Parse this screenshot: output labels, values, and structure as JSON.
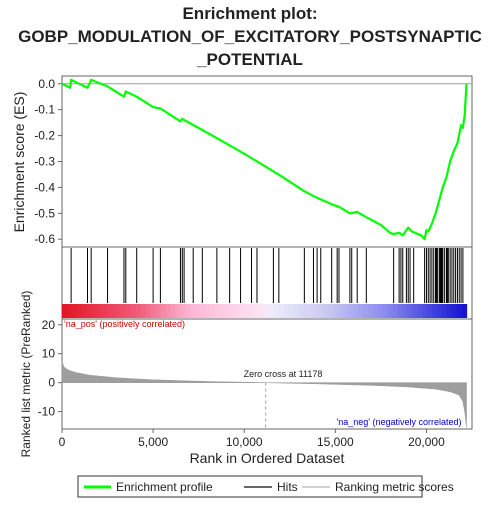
{
  "chart_data": {
    "type": "line",
    "title_lines": [
      "Enrichment plot:",
      "GOBP_MODULATION_OF_EXCITATORY_POSTSYNAPTIC",
      "_POTENTIAL"
    ],
    "xlabel": "Rank in Ordered Dataset",
    "xlim": [
      0,
      22500
    ],
    "x_ticks": [
      0,
      5000,
      10000,
      15000,
      20000
    ],
    "x_tick_labels": [
      "0",
      "5,000",
      "10,000",
      "15,000",
      "20,000"
    ],
    "panels": {
      "es": {
        "ylabel": "Enrichment score (ES)",
        "ylim": [
          -0.63,
          0.03
        ],
        "y_ticks": [
          0.0,
          -0.1,
          -0.2,
          -0.3,
          -0.4,
          -0.5,
          -0.6
        ],
        "y_tick_labels": [
          "0.0",
          "-0.1",
          "-0.2",
          "-0.3",
          "-0.4",
          "-0.5",
          "-0.6"
        ],
        "series": {
          "name": "Enrichment profile",
          "color": "#00ff00",
          "x": [
            0,
            450,
            500,
            1400,
            1500,
            1600,
            2500,
            3400,
            3500,
            4100,
            5000,
            5400,
            6500,
            6600,
            6700,
            8000,
            10000,
            11178,
            12000,
            13300,
            14000,
            14800,
            15200,
            15800,
            16200,
            16700,
            17500,
            18000,
            18200,
            18500,
            18700,
            19000,
            19200,
            19700,
            19900,
            20000,
            20100,
            20300,
            20500,
            20700,
            20900,
            21100,
            21300,
            21500,
            21700,
            21900,
            22000,
            22100,
            22200
          ],
          "y": [
            0.0,
            -0.015,
            0.015,
            -0.015,
            0.0,
            0.015,
            -0.01,
            -0.05,
            -0.03,
            -0.05,
            -0.09,
            -0.095,
            -0.145,
            -0.135,
            -0.14,
            -0.19,
            -0.27,
            -0.32,
            -0.355,
            -0.415,
            -0.44,
            -0.465,
            -0.475,
            -0.5,
            -0.495,
            -0.515,
            -0.545,
            -0.575,
            -0.58,
            -0.575,
            -0.585,
            -0.555,
            -0.57,
            -0.585,
            -0.6,
            -0.565,
            -0.57,
            -0.54,
            -0.5,
            -0.45,
            -0.4,
            -0.36,
            -0.3,
            -0.26,
            -0.23,
            -0.16,
            -0.17,
            -0.12,
            0.0
          ]
        }
      },
      "hits": {
        "name": "Hits",
        "color": "#000000",
        "positions": [
          500,
          1400,
          1600,
          2500,
          3400,
          3500,
          4100,
          5000,
          5400,
          6500,
          6600,
          6700,
          7200,
          7700,
          8500,
          9200,
          9800,
          10400,
          10700,
          11600,
          11900,
          13300,
          13800,
          14000,
          14200,
          14800,
          15100,
          15200,
          15800,
          15900,
          16200,
          16700,
          18200,
          18500,
          18600,
          18700,
          18900,
          19000,
          19100,
          19300,
          19900,
          20000,
          20100,
          20200,
          20300,
          20400,
          20500,
          20550,
          20600,
          20700,
          20750,
          20800,
          20850,
          20900,
          21000,
          21100,
          21150,
          21200,
          21300,
          21400,
          21500,
          21600,
          21700,
          21800,
          21900,
          22000
        ]
      },
      "ranked_metric": {
        "ylabel": "Ranked list metric (PreRanked)",
        "ylim": [
          -16,
          22
        ],
        "y_ticks": [
          20,
          10,
          0,
          -10
        ],
        "y_tick_labels": [
          "20",
          "10",
          "0",
          "-10"
        ],
        "name": "Ranking metric scores",
        "color": "#9e9e9e",
        "x": [
          0,
          100,
          300,
          700,
          1500,
          3000,
          5000,
          8000,
          11178,
          14000,
          17000,
          19000,
          20500,
          21300,
          21800,
          22000,
          22100,
          22200
        ],
        "y": [
          7.5,
          5.5,
          4.5,
          3.6,
          2.6,
          1.7,
          1.0,
          0.4,
          0.0,
          -0.4,
          -0.9,
          -1.5,
          -2.2,
          -3.1,
          -4.3,
          -6.5,
          -10,
          -15.5
        ]
      }
    },
    "zero_cross_label": "Zero cross at 11178",
    "pos_label": "'na_pos' (positively correlated)",
    "neg_label": "'na_neg' (negatively correlated)",
    "legend": {
      "placement": "bottom",
      "entries": [
        "Enrichment profile",
        "Hits",
        "Ranking metric scores"
      ]
    }
  }
}
